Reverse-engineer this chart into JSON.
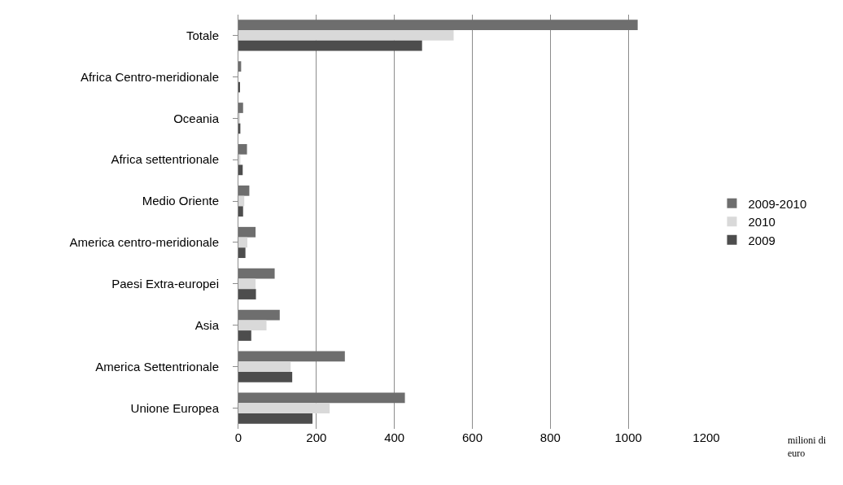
{
  "chart_data": {
    "type": "bar",
    "orientation": "horizontal",
    "categories": [
      "Totale",
      "Africa Centro-meridionale",
      "Oceania",
      "Africa settentrionale",
      "Medio Oriente",
      "America centro-meridionale",
      "Paesi Extra-europei",
      "Asia",
      "America Settentrionale",
      "Unione Europea"
    ],
    "series": [
      {
        "name": "2009-2010",
        "color": "#6e6e6e",
        "values": [
          1024,
          7,
          12,
          22,
          28,
          44,
          93,
          106,
          273,
          427
        ]
      },
      {
        "name": "2010",
        "color": "#d9d9d9",
        "values": [
          552,
          null,
          3,
          5,
          15,
          23,
          44,
          72,
          134,
          234
        ]
      },
      {
        "name": "2009",
        "color": "#4d4d4d",
        "values": [
          471,
          3,
          5,
          11,
          12,
          18,
          45,
          33,
          138,
          190
        ]
      }
    ],
    "xlim": [
      0,
      1200
    ],
    "xticks": [
      0,
      200,
      400,
      600,
      800,
      1000,
      1200
    ],
    "grid": "x",
    "legend": "right",
    "annotations": [
      "milioni di euro"
    ]
  }
}
